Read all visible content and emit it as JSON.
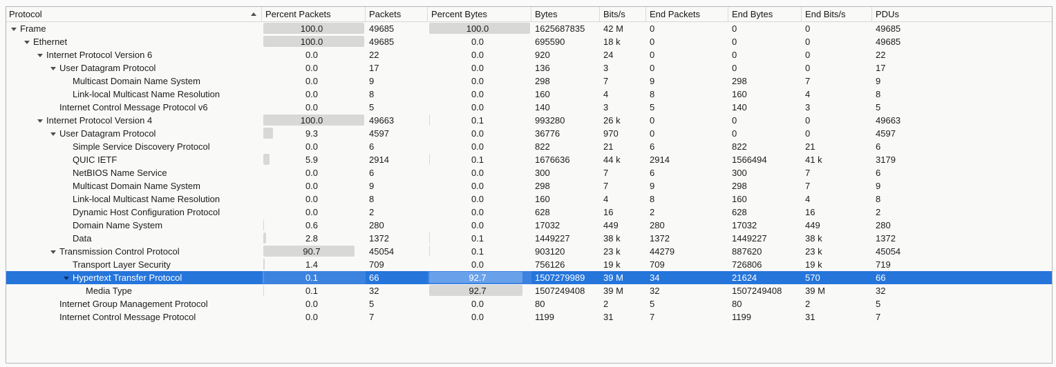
{
  "table": {
    "columns": [
      {
        "label": "Protocol",
        "sorted": "ascending"
      },
      {
        "label": "Percent Packets"
      },
      {
        "label": "Packets"
      },
      {
        "label": "Percent Bytes"
      },
      {
        "label": "Bytes"
      },
      {
        "label": "Bits/s"
      },
      {
        "label": "End Packets"
      },
      {
        "label": "End Bytes"
      },
      {
        "label": "End Bits/s"
      },
      {
        "label": "PDUs"
      }
    ],
    "rows": [
      {
        "protocol": "Frame",
        "level": 0,
        "expandable": true,
        "selected": false,
        "percent_packets": "100.0",
        "packets": "49685",
        "percent_bytes": "100.0",
        "bytes": "1625687835",
        "bits_s": "42 M",
        "end_packets": "0",
        "end_bytes": "0",
        "end_bits_s": "0",
        "pdus": "49685"
      },
      {
        "protocol": "Ethernet",
        "level": 1,
        "expandable": true,
        "selected": false,
        "percent_packets": "100.0",
        "packets": "49685",
        "percent_bytes": "0.0",
        "bytes": "695590",
        "bits_s": "18 k",
        "end_packets": "0",
        "end_bytes": "0",
        "end_bits_s": "0",
        "pdus": "49685"
      },
      {
        "protocol": "Internet Protocol Version 6",
        "level": 2,
        "expandable": true,
        "selected": false,
        "percent_packets": "0.0",
        "packets": "22",
        "percent_bytes": "0.0",
        "bytes": "920",
        "bits_s": "24",
        "end_packets": "0",
        "end_bytes": "0",
        "end_bits_s": "0",
        "pdus": "22"
      },
      {
        "protocol": "User Datagram Protocol",
        "level": 3,
        "expandable": true,
        "selected": false,
        "percent_packets": "0.0",
        "packets": "17",
        "percent_bytes": "0.0",
        "bytes": "136",
        "bits_s": "3",
        "end_packets": "0",
        "end_bytes": "0",
        "end_bits_s": "0",
        "pdus": "17"
      },
      {
        "protocol": "Multicast Domain Name System",
        "level": 4,
        "expandable": false,
        "selected": false,
        "percent_packets": "0.0",
        "packets": "9",
        "percent_bytes": "0.0",
        "bytes": "298",
        "bits_s": "7",
        "end_packets": "9",
        "end_bytes": "298",
        "end_bits_s": "7",
        "pdus": "9"
      },
      {
        "protocol": "Link-local Multicast Name Resolution",
        "level": 4,
        "expandable": false,
        "selected": false,
        "percent_packets": "0.0",
        "packets": "8",
        "percent_bytes": "0.0",
        "bytes": "160",
        "bits_s": "4",
        "end_packets": "8",
        "end_bytes": "160",
        "end_bits_s": "4",
        "pdus": "8"
      },
      {
        "protocol": "Internet Control Message Protocol v6",
        "level": 3,
        "expandable": false,
        "selected": false,
        "percent_packets": "0.0",
        "packets": "5",
        "percent_bytes": "0.0",
        "bytes": "140",
        "bits_s": "3",
        "end_packets": "5",
        "end_bytes": "140",
        "end_bits_s": "3",
        "pdus": "5"
      },
      {
        "protocol": "Internet Protocol Version 4",
        "level": 2,
        "expandable": true,
        "selected": false,
        "percent_packets": "100.0",
        "packets": "49663",
        "percent_bytes": "0.1",
        "bytes": "993280",
        "bits_s": "26 k",
        "end_packets": "0",
        "end_bytes": "0",
        "end_bits_s": "0",
        "pdus": "49663"
      },
      {
        "protocol": "User Datagram Protocol",
        "level": 3,
        "expandable": true,
        "selected": false,
        "percent_packets": "9.3",
        "packets": "4597",
        "percent_bytes": "0.0",
        "bytes": "36776",
        "bits_s": "970",
        "end_packets": "0",
        "end_bytes": "0",
        "end_bits_s": "0",
        "pdus": "4597"
      },
      {
        "protocol": "Simple Service Discovery Protocol",
        "level": 4,
        "expandable": false,
        "selected": false,
        "percent_packets": "0.0",
        "packets": "6",
        "percent_bytes": "0.0",
        "bytes": "822",
        "bits_s": "21",
        "end_packets": "6",
        "end_bytes": "822",
        "end_bits_s": "21",
        "pdus": "6"
      },
      {
        "protocol": "QUIC IETF",
        "level": 4,
        "expandable": false,
        "selected": false,
        "percent_packets": "5.9",
        "packets": "2914",
        "percent_bytes": "0.1",
        "bytes": "1676636",
        "bits_s": "44 k",
        "end_packets": "2914",
        "end_bytes": "1566494",
        "end_bits_s": "41 k",
        "pdus": "3179"
      },
      {
        "protocol": "NetBIOS Name Service",
        "level": 4,
        "expandable": false,
        "selected": false,
        "percent_packets": "0.0",
        "packets": "6",
        "percent_bytes": "0.0",
        "bytes": "300",
        "bits_s": "7",
        "end_packets": "6",
        "end_bytes": "300",
        "end_bits_s": "7",
        "pdus": "6"
      },
      {
        "protocol": "Multicast Domain Name System",
        "level": 4,
        "expandable": false,
        "selected": false,
        "percent_packets": "0.0",
        "packets": "9",
        "percent_bytes": "0.0",
        "bytes": "298",
        "bits_s": "7",
        "end_packets": "9",
        "end_bytes": "298",
        "end_bits_s": "7",
        "pdus": "9"
      },
      {
        "protocol": "Link-local Multicast Name Resolution",
        "level": 4,
        "expandable": false,
        "selected": false,
        "percent_packets": "0.0",
        "packets": "8",
        "percent_bytes": "0.0",
        "bytes": "160",
        "bits_s": "4",
        "end_packets": "8",
        "end_bytes": "160",
        "end_bits_s": "4",
        "pdus": "8"
      },
      {
        "protocol": "Dynamic Host Configuration Protocol",
        "level": 4,
        "expandable": false,
        "selected": false,
        "percent_packets": "0.0",
        "packets": "2",
        "percent_bytes": "0.0",
        "bytes": "628",
        "bits_s": "16",
        "end_packets": "2",
        "end_bytes": "628",
        "end_bits_s": "16",
        "pdus": "2"
      },
      {
        "protocol": "Domain Name System",
        "level": 4,
        "expandable": false,
        "selected": false,
        "percent_packets": "0.6",
        "packets": "280",
        "percent_bytes": "0.0",
        "bytes": "17032",
        "bits_s": "449",
        "end_packets": "280",
        "end_bytes": "17032",
        "end_bits_s": "449",
        "pdus": "280"
      },
      {
        "protocol": "Data",
        "level": 4,
        "expandable": false,
        "selected": false,
        "percent_packets": "2.8",
        "packets": "1372",
        "percent_bytes": "0.1",
        "bytes": "1449227",
        "bits_s": "38 k",
        "end_packets": "1372",
        "end_bytes": "1449227",
        "end_bits_s": "38 k",
        "pdus": "1372"
      },
      {
        "protocol": "Transmission Control Protocol",
        "level": 3,
        "expandable": true,
        "selected": false,
        "percent_packets": "90.7",
        "packets": "45054",
        "percent_bytes": "0.1",
        "bytes": "903120",
        "bits_s": "23 k",
        "end_packets": "44279",
        "end_bytes": "887620",
        "end_bits_s": "23 k",
        "pdus": "45054"
      },
      {
        "protocol": "Transport Layer Security",
        "level": 4,
        "expandable": false,
        "selected": false,
        "percent_packets": "1.4",
        "packets": "709",
        "percent_bytes": "0.0",
        "bytes": "756126",
        "bits_s": "19 k",
        "end_packets": "709",
        "end_bytes": "726806",
        "end_bits_s": "19 k",
        "pdus": "719"
      },
      {
        "protocol": "Hypertext Transfer Protocol",
        "level": 4,
        "expandable": true,
        "selected": true,
        "percent_packets": "0.1",
        "packets": "66",
        "percent_bytes": "92.7",
        "bytes": "1507279989",
        "bits_s": "39 M",
        "end_packets": "34",
        "end_bytes": "21624",
        "end_bits_s": "570",
        "pdus": "66"
      },
      {
        "protocol": "Media Type",
        "level": 5,
        "expandable": false,
        "selected": false,
        "percent_packets": "0.1",
        "packets": "32",
        "percent_bytes": "92.7",
        "bytes": "1507249408",
        "bits_s": "39 M",
        "end_packets": "32",
        "end_bytes": "1507249408",
        "end_bits_s": "39 M",
        "pdus": "32"
      },
      {
        "protocol": "Internet Group Management Protocol",
        "level": 3,
        "expandable": false,
        "selected": false,
        "percent_packets": "0.0",
        "packets": "5",
        "percent_bytes": "0.0",
        "bytes": "80",
        "bits_s": "2",
        "end_packets": "5",
        "end_bytes": "80",
        "end_bits_s": "2",
        "pdus": "5"
      },
      {
        "protocol": "Internet Control Message Protocol",
        "level": 3,
        "expandable": false,
        "selected": false,
        "percent_packets": "0.0",
        "packets": "7",
        "percent_bytes": "0.0",
        "bytes": "1199",
        "bits_s": "31",
        "end_packets": "7",
        "end_bytes": "1199",
        "end_bits_s": "31",
        "pdus": "7"
      }
    ]
  },
  "colors": {
    "selection_blue": "#2575db",
    "selection_percent_cell_blue": "#3c82df",
    "selection_bar_blue": "#69a0ea",
    "percent_bar_gray": "#d8d8d6"
  }
}
